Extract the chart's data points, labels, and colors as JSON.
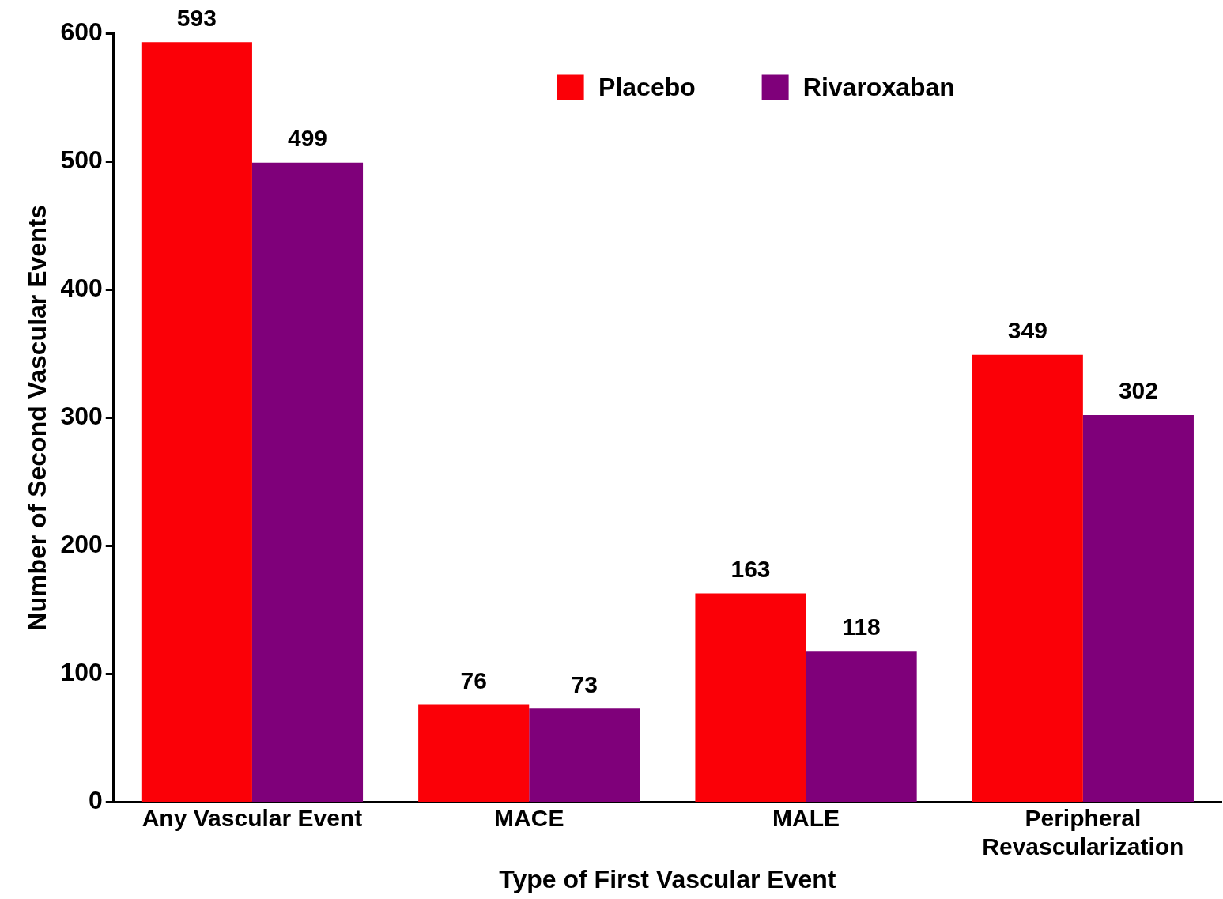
{
  "chart_data": {
    "type": "bar",
    "xlabel": "Type of First Vascular Event",
    "ylabel": "Number of Second Vascular Events",
    "categories": [
      "Any Vascular Event",
      "MACE",
      "MALE",
      "Peripheral Revascularization"
    ],
    "series": [
      {
        "name": "Placebo",
        "color": "#fb0007",
        "values": [
          593,
          76,
          163,
          349
        ]
      },
      {
        "name": "Rivaroxaban",
        "color": "#7f007a",
        "values": [
          499,
          73,
          118,
          302
        ]
      }
    ],
    "ylim": [
      0,
      600
    ],
    "yticks": [
      0,
      100,
      200,
      300,
      400,
      500,
      600
    ],
    "grid": false,
    "legend": "top",
    "data_labels": true
  }
}
